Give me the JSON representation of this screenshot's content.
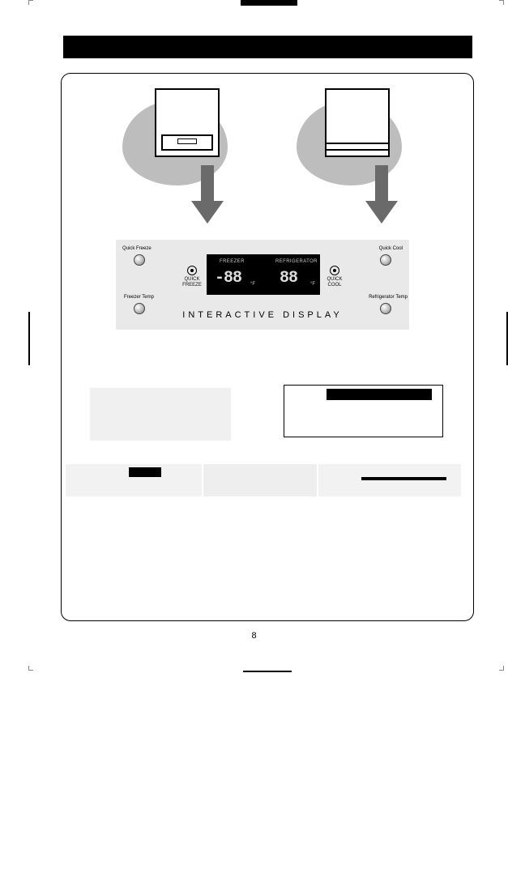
{
  "page_number": "8",
  "panel": {
    "caption": "INTERACTIVE DISPLAY",
    "knob_labels": {
      "top_left": "Quick Freeze",
      "top_right": "Quick Cool",
      "bottom_left": "Freezer Temp",
      "bottom_right": "Refrigerator Temp"
    },
    "side_icons": {
      "left": "QUICK FREEZE",
      "right": "QUICK COOL"
    },
    "lcd": {
      "freezer_label": "FREEZER",
      "refrigerator_label": "REFRIGERATOR",
      "freezer_value": "-88",
      "refrigerator_value": "88",
      "unit": "°F"
    },
    "background_color": "#e9e9e9",
    "lcd_background": "#000000",
    "lcd_text_color": "#dcdcdc"
  },
  "colors": {
    "page_bg": "#ffffff",
    "header_bar": "#000000",
    "blob": "#bdbdbd",
    "arrow": "#6a6a6a",
    "light_block": "#f0f0f0"
  }
}
